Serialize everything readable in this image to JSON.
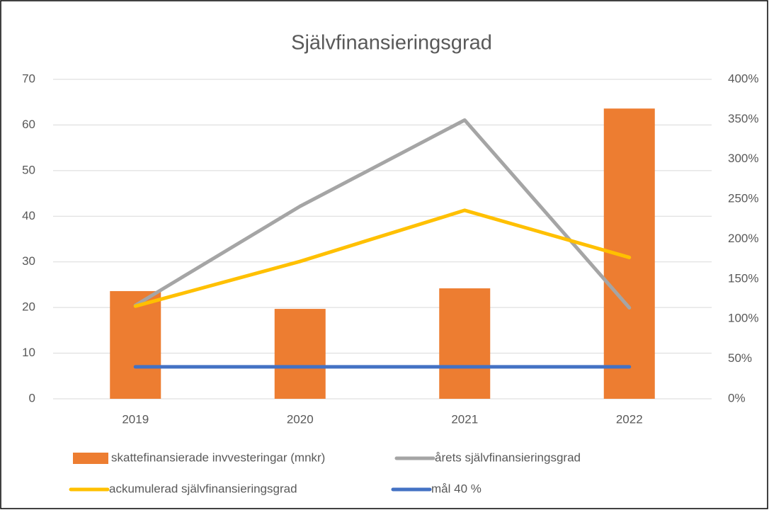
{
  "chart_data": {
    "type": "combo",
    "title": "Självfinansieringsgrad",
    "categories": [
      "2019",
      "2020",
      "2021",
      "2022"
    ],
    "series": [
      {
        "name": "skattefinansierade invvesteringar (mnkr)",
        "type": "bar",
        "color": "#ED7D31",
        "values": [
          23.6,
          19.7,
          24.2,
          63.6
        ]
      },
      {
        "name": "årets självfinansieringsgrad",
        "type": "line",
        "axis": "y2",
        "color": "#A5A5A5",
        "values": [
          117,
          241,
          349,
          114
        ]
      },
      {
        "name": "ackumulerad självfinansieringsgrad",
        "type": "line",
        "axis": "y2",
        "color": "#FFC000",
        "values": [
          116,
          172,
          236,
          177
        ]
      },
      {
        "name": "mål 40 %",
        "type": "line",
        "axis": "y2",
        "color": "#4472C4",
        "values": [
          40,
          40,
          40,
          40
        ]
      }
    ],
    "ylim": [
      0,
      70
    ],
    "yticks": [
      0,
      10,
      20,
      30,
      40,
      50,
      60,
      70
    ],
    "y2lim": [
      0,
      400
    ],
    "y2ticks": [
      {
        "value": 0,
        "label": "0%"
      },
      {
        "value": 50,
        "label": "50%"
      },
      {
        "value": 100,
        "label": "100%"
      },
      {
        "value": 150,
        "label": "150%"
      },
      {
        "value": 200,
        "label": "200%"
      },
      {
        "value": 250,
        "label": "250%"
      },
      {
        "value": 300,
        "label": "300%"
      },
      {
        "value": 350,
        "label": "350%"
      },
      {
        "value": 400,
        "label": "400%"
      }
    ],
    "grid": true
  }
}
